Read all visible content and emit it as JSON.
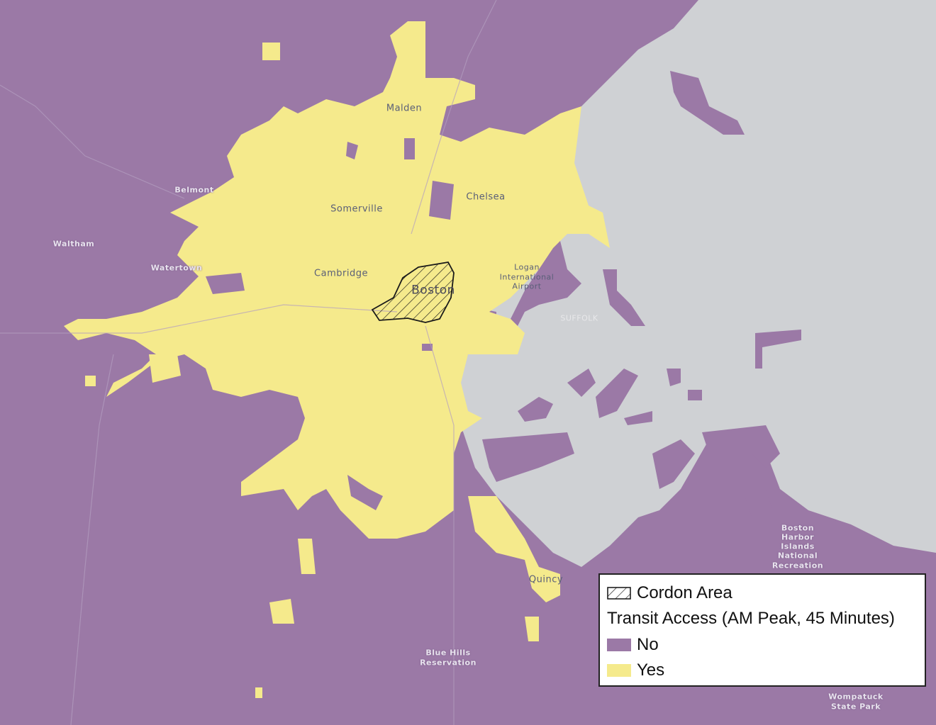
{
  "colors": {
    "no": "#9b79a6",
    "yes": "#f5ea8c",
    "water": "#cfd1d4",
    "cordon_stroke": "#1a1a1a"
  },
  "labels": {
    "malden": "Malden",
    "somerville": "Somerville",
    "chelsea": "Chelsea",
    "belmont": "Belmont",
    "waltham": "Waltham",
    "watertown": "Watertown",
    "cambridge": "Cambridge",
    "boston": "Boston",
    "logan_1": "Logan",
    "logan_2": "International",
    "logan_3": "Airport",
    "suffolk": "SUFFOLK",
    "quincy": "Quincy",
    "blue_hills_1": "Blue Hills",
    "blue_hills_2": "Reservation",
    "harbor_1": "Boston",
    "harbor_2": "Harbor",
    "harbor_3": "Islands",
    "harbor_4": "National",
    "harbor_5": "Recreation",
    "wompatuck_1": "Wompatuck",
    "wompatuck_2": "State Park"
  },
  "legend": {
    "cordon": "Cordon Area",
    "title": "Transit Access (AM Peak, 45 Minutes)",
    "no": "No",
    "yes": "Yes"
  }
}
